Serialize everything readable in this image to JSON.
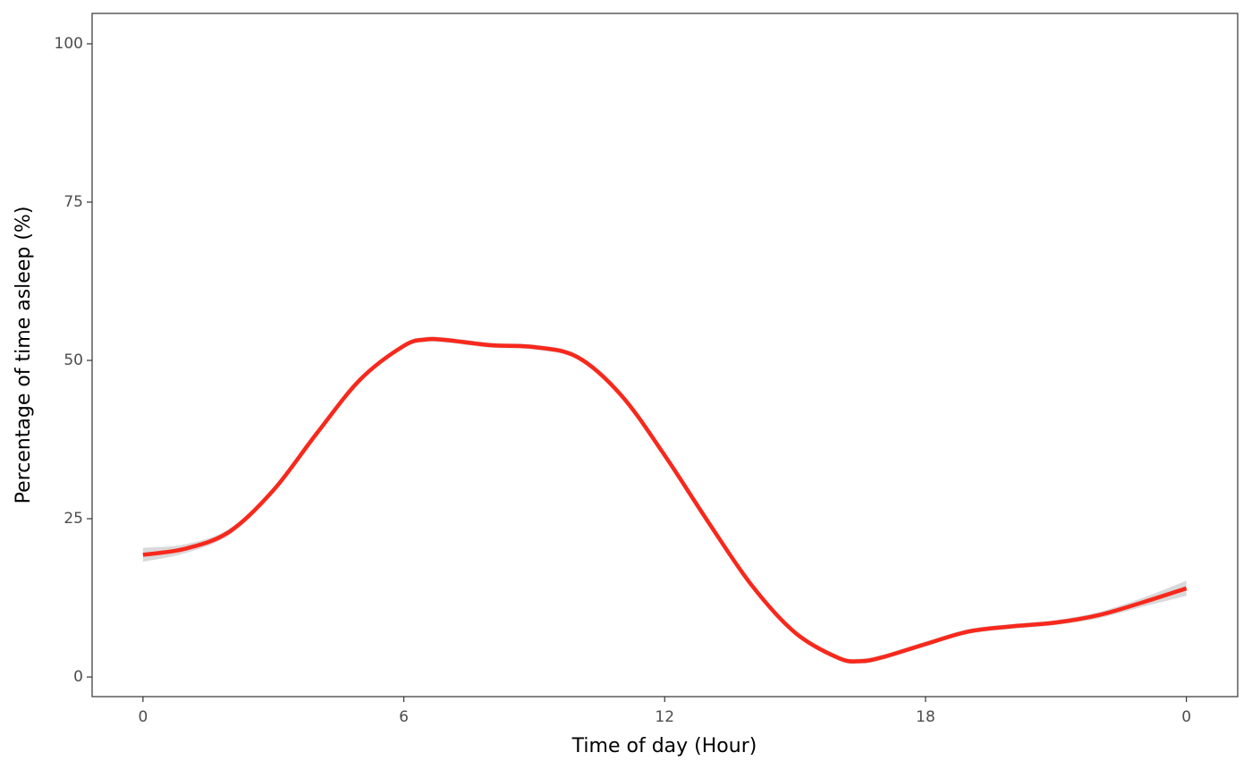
{
  "chart_data": {
    "type": "line",
    "x_label": "Time of day (Hour)",
    "y_label": "Percentage of time asleep (%)",
    "x": [
      0,
      1,
      2,
      3,
      4,
      5,
      6,
      6.5,
      7,
      8,
      9,
      10,
      11,
      12,
      13,
      14,
      15,
      16,
      16.5,
      17,
      18,
      19,
      20,
      21,
      22,
      23,
      24
    ],
    "values": [
      19.3,
      20.3,
      23,
      29.5,
      38.5,
      47,
      52.3,
      53.3,
      53.2,
      52.4,
      52.1,
      50.5,
      44.5,
      35,
      24.5,
      14.5,
      7,
      3,
      2.5,
      3.1,
      5.2,
      7.2,
      8,
      8.6,
      9.8,
      11.8,
      14
    ],
    "lower": [
      18.2,
      19.6,
      22.5,
      29.1,
      38.1,
      46.6,
      51.9,
      52.9,
      52.8,
      52,
      51.7,
      50.1,
      44.1,
      34.6,
      24.1,
      14.1,
      6.6,
      2.6,
      2.1,
      2.7,
      4.8,
      6.8,
      7.6,
      8.2,
      9.3,
      11.1,
      12.8
    ],
    "upper": [
      20.4,
      21,
      23.5,
      29.9,
      38.9,
      47.4,
      52.7,
      53.7,
      53.6,
      52.8,
      52.5,
      50.9,
      44.9,
      35.4,
      24.9,
      14.9,
      7.4,
      3.4,
      2.9,
      3.5,
      5.6,
      7.6,
      8.4,
      9,
      10.3,
      12.5,
      15.2
    ],
    "color": "#f8281c",
    "band_color": "#d9d9d9",
    "xlim": [
      -1.17,
      25.18
    ],
    "ylim": [
      -3.1,
      104.8
    ],
    "xticks": [
      0,
      6,
      12,
      18,
      {
        "value": 24,
        "label": "0"
      }
    ],
    "yticks": [
      0,
      25,
      50,
      75,
      100
    ],
    "grid": false
  }
}
